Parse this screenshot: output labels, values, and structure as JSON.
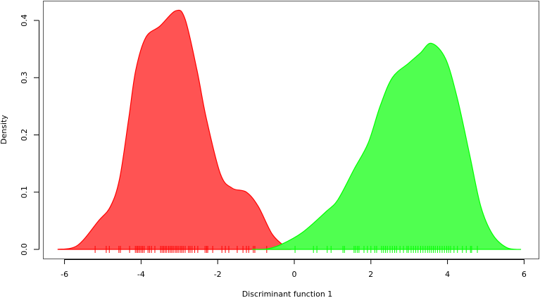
{
  "chart_data": {
    "type": "area",
    "title": "",
    "xlabel": "Discriminant function 1",
    "ylabel": "Density",
    "xlim": [
      -6.3,
      6.3
    ],
    "ylim": [
      0,
      0.42
    ],
    "x_ticks": [
      "-6",
      "-4",
      "-2",
      "0",
      "2",
      "4",
      "6"
    ],
    "y_ticks": [
      "0.0",
      "0.1",
      "0.2",
      "0.3",
      "0.4"
    ],
    "grid": false,
    "legend": "none",
    "series": [
      {
        "color": "#ff0000",
        "fill": "#ff5050",
        "x": [
          -6.18,
          -5.66,
          -5.11,
          -4.8,
          -4.56,
          -4.32,
          -4.14,
          -3.88,
          -3.51,
          -3.09,
          -2.85,
          -2.54,
          -2.3,
          -1.93,
          -1.62,
          -1.25,
          -0.94,
          -0.57,
          -0.2,
          -0.08
        ],
        "y": [
          0.0,
          0.007,
          0.05,
          0.075,
          0.124,
          0.23,
          0.313,
          0.37,
          0.39,
          0.417,
          0.402,
          0.313,
          0.23,
          0.132,
          0.107,
          0.1,
          0.075,
          0.026,
          0.003,
          0.0
        ],
        "rug": [
          -5.2,
          -4.91,
          -4.83,
          -4.58,
          -4.54,
          -4.3,
          -4.15,
          -4.11,
          -4.08,
          -4.04,
          -4.0,
          -3.96,
          -3.92,
          -3.82,
          -3.78,
          -3.73,
          -3.64,
          -3.49,
          -3.45,
          -3.41,
          -3.37,
          -3.33,
          -3.28,
          -3.24,
          -3.2,
          -3.16,
          -3.11,
          -3.07,
          -3.03,
          -2.98,
          -2.94,
          -2.9,
          -2.85,
          -2.76,
          -2.72,
          -2.67,
          -2.6,
          -2.52,
          -2.33,
          -2.29,
          -2.26,
          -2.13,
          -1.89,
          -1.8,
          -1.71,
          -1.49,
          -1.34,
          -1.25,
          -1.19,
          -1.07,
          -1.03,
          -0.72
        ]
      },
      {
        "color": "#00ff00",
        "fill": "#4cff4c",
        "x": [
          -1.1,
          -0.7,
          -0.33,
          0.22,
          0.83,
          1.14,
          1.56,
          1.93,
          2.24,
          2.56,
          2.98,
          3.29,
          3.58,
          3.95,
          4.26,
          4.58,
          4.87,
          5.18,
          5.55,
          5.92
        ],
        "y": [
          0.0,
          0.001,
          0.009,
          0.03,
          0.066,
          0.087,
          0.14,
          0.186,
          0.25,
          0.3,
          0.325,
          0.343,
          0.36,
          0.333,
          0.263,
          0.165,
          0.075,
          0.026,
          0.003,
          0.0
        ],
        "rug": [
          0.02,
          0.5,
          0.59,
          0.86,
          0.96,
          1.27,
          1.31,
          1.56,
          1.6,
          1.65,
          1.69,
          1.82,
          1.91,
          2.0,
          2.1,
          2.15,
          2.28,
          2.33,
          2.38,
          2.43,
          2.5,
          2.56,
          2.62,
          2.67,
          2.76,
          2.85,
          2.94,
          2.98,
          3.05,
          3.11,
          3.17,
          3.23,
          3.3,
          3.36,
          3.42,
          3.48,
          3.53,
          3.58,
          3.63,
          3.68,
          3.74,
          3.8,
          3.86,
          3.92,
          3.98,
          4.03,
          4.08,
          4.17,
          4.26,
          4.39,
          4.49,
          4.6,
          4.63,
          4.78
        ]
      }
    ]
  }
}
